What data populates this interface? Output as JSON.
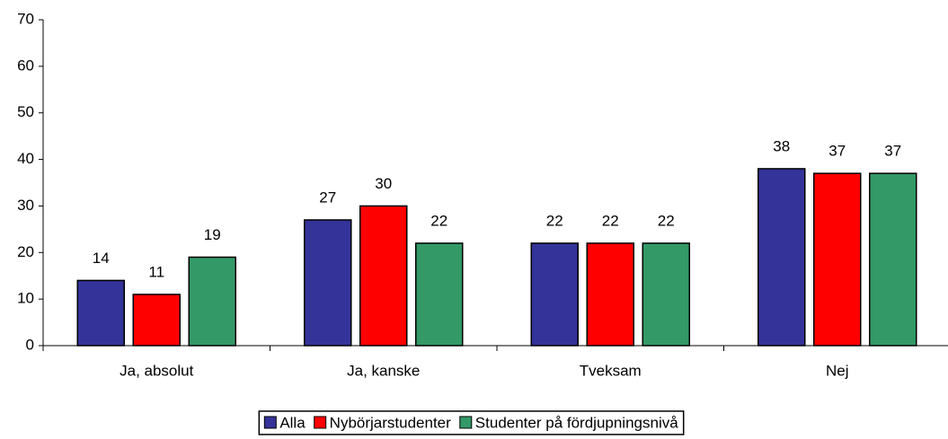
{
  "chart_data": {
    "type": "bar",
    "categories": [
      "Ja, absolut",
      "Ja, kanske",
      "Tveksam",
      "Nej"
    ],
    "series": [
      {
        "name": "Alla",
        "color": "#333399",
        "values": [
          14,
          27,
          22,
          38
        ]
      },
      {
        "name": "Nybörjarstudenter",
        "color": "#ff0000",
        "values": [
          11,
          30,
          22,
          37
        ]
      },
      {
        "name": "Studenter på fördjupningsnivå",
        "color": "#339966",
        "values": [
          19,
          22,
          22,
          37
        ]
      }
    ],
    "ylim": [
      0,
      70
    ],
    "yticks": [
      0,
      10,
      20,
      30,
      40,
      50,
      60,
      70
    ],
    "grid": false,
    "legend": "bottom"
  }
}
